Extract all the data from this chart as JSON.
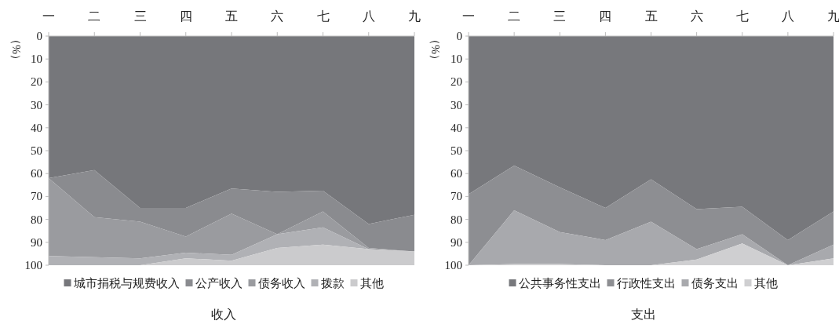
{
  "chart_data": [
    {
      "type": "area",
      "stacked": true,
      "title": "收入",
      "ylabel": "（%）",
      "categories": [
        "一",
        "二",
        "三",
        "四",
        "五",
        "六",
        "七",
        "八",
        "九"
      ],
      "ylim": [
        100,
        0
      ],
      "yticks": [
        0,
        10,
        20,
        30,
        40,
        50,
        60,
        70,
        80,
        90,
        100
      ],
      "legend": "bottom",
      "series": [
        {
          "name": "城市捐税与规费收入",
          "color": "#76777b",
          "values": [
            62,
            58.5,
            75,
            75,
            66.5,
            68,
            67.5,
            82,
            78
          ]
        },
        {
          "name": "公产收入",
          "color": "#8a8b8f",
          "values": [
            0,
            20.5,
            6,
            12.5,
            11,
            18.5,
            9,
            10.5,
            16
          ]
        },
        {
          "name": "债务收入",
          "color": "#9a9b9f",
          "values": [
            34,
            17.5,
            16,
            7,
            18,
            0,
            7,
            0.5,
            0
          ]
        },
        {
          "name": "拨款",
          "color": "#b0b1b5",
          "values": [
            4,
            3.5,
            3,
            2.5,
            2.5,
            6,
            7.5,
            0,
            0
          ]
        },
        {
          "name": "其他",
          "color": "#cbcbcd",
          "values": [
            0,
            0,
            0,
            3,
            2,
            7.5,
            9,
            7,
            6
          ]
        }
      ]
    },
    {
      "type": "area",
      "stacked": true,
      "title": "支出",
      "ylabel": "（%）",
      "categories": [
        "一",
        "二",
        "三",
        "四",
        "五",
        "六",
        "七",
        "八",
        "九"
      ],
      "ylim": [
        100,
        0
      ],
      "yticks": [
        0,
        10,
        20,
        30,
        40,
        50,
        60,
        70,
        80,
        90,
        100
      ],
      "legend": "bottom",
      "series": [
        {
          "name": "公共事务性支出",
          "color": "#77787c",
          "values": [
            69,
            56.5,
            66,
            75,
            62.5,
            75.5,
            74.5,
            89,
            76.5
          ]
        },
        {
          "name": "行政性支出",
          "color": "#8d8e92",
          "values": [
            31,
            19.5,
            19.5,
            14,
            18.5,
            17.5,
            12,
            11,
            14.5
          ]
        },
        {
          "name": "债务支出",
          "color": "#a8a9ad",
          "values": [
            0,
            23.5,
            14,
            11,
            19,
            4.5,
            4,
            0,
            6
          ]
        },
        {
          "name": "其他",
          "color": "#cfcfd1",
          "values": [
            0,
            0.5,
            0.5,
            0,
            0,
            2.5,
            9.5,
            0,
            3
          ]
        }
      ]
    }
  ]
}
